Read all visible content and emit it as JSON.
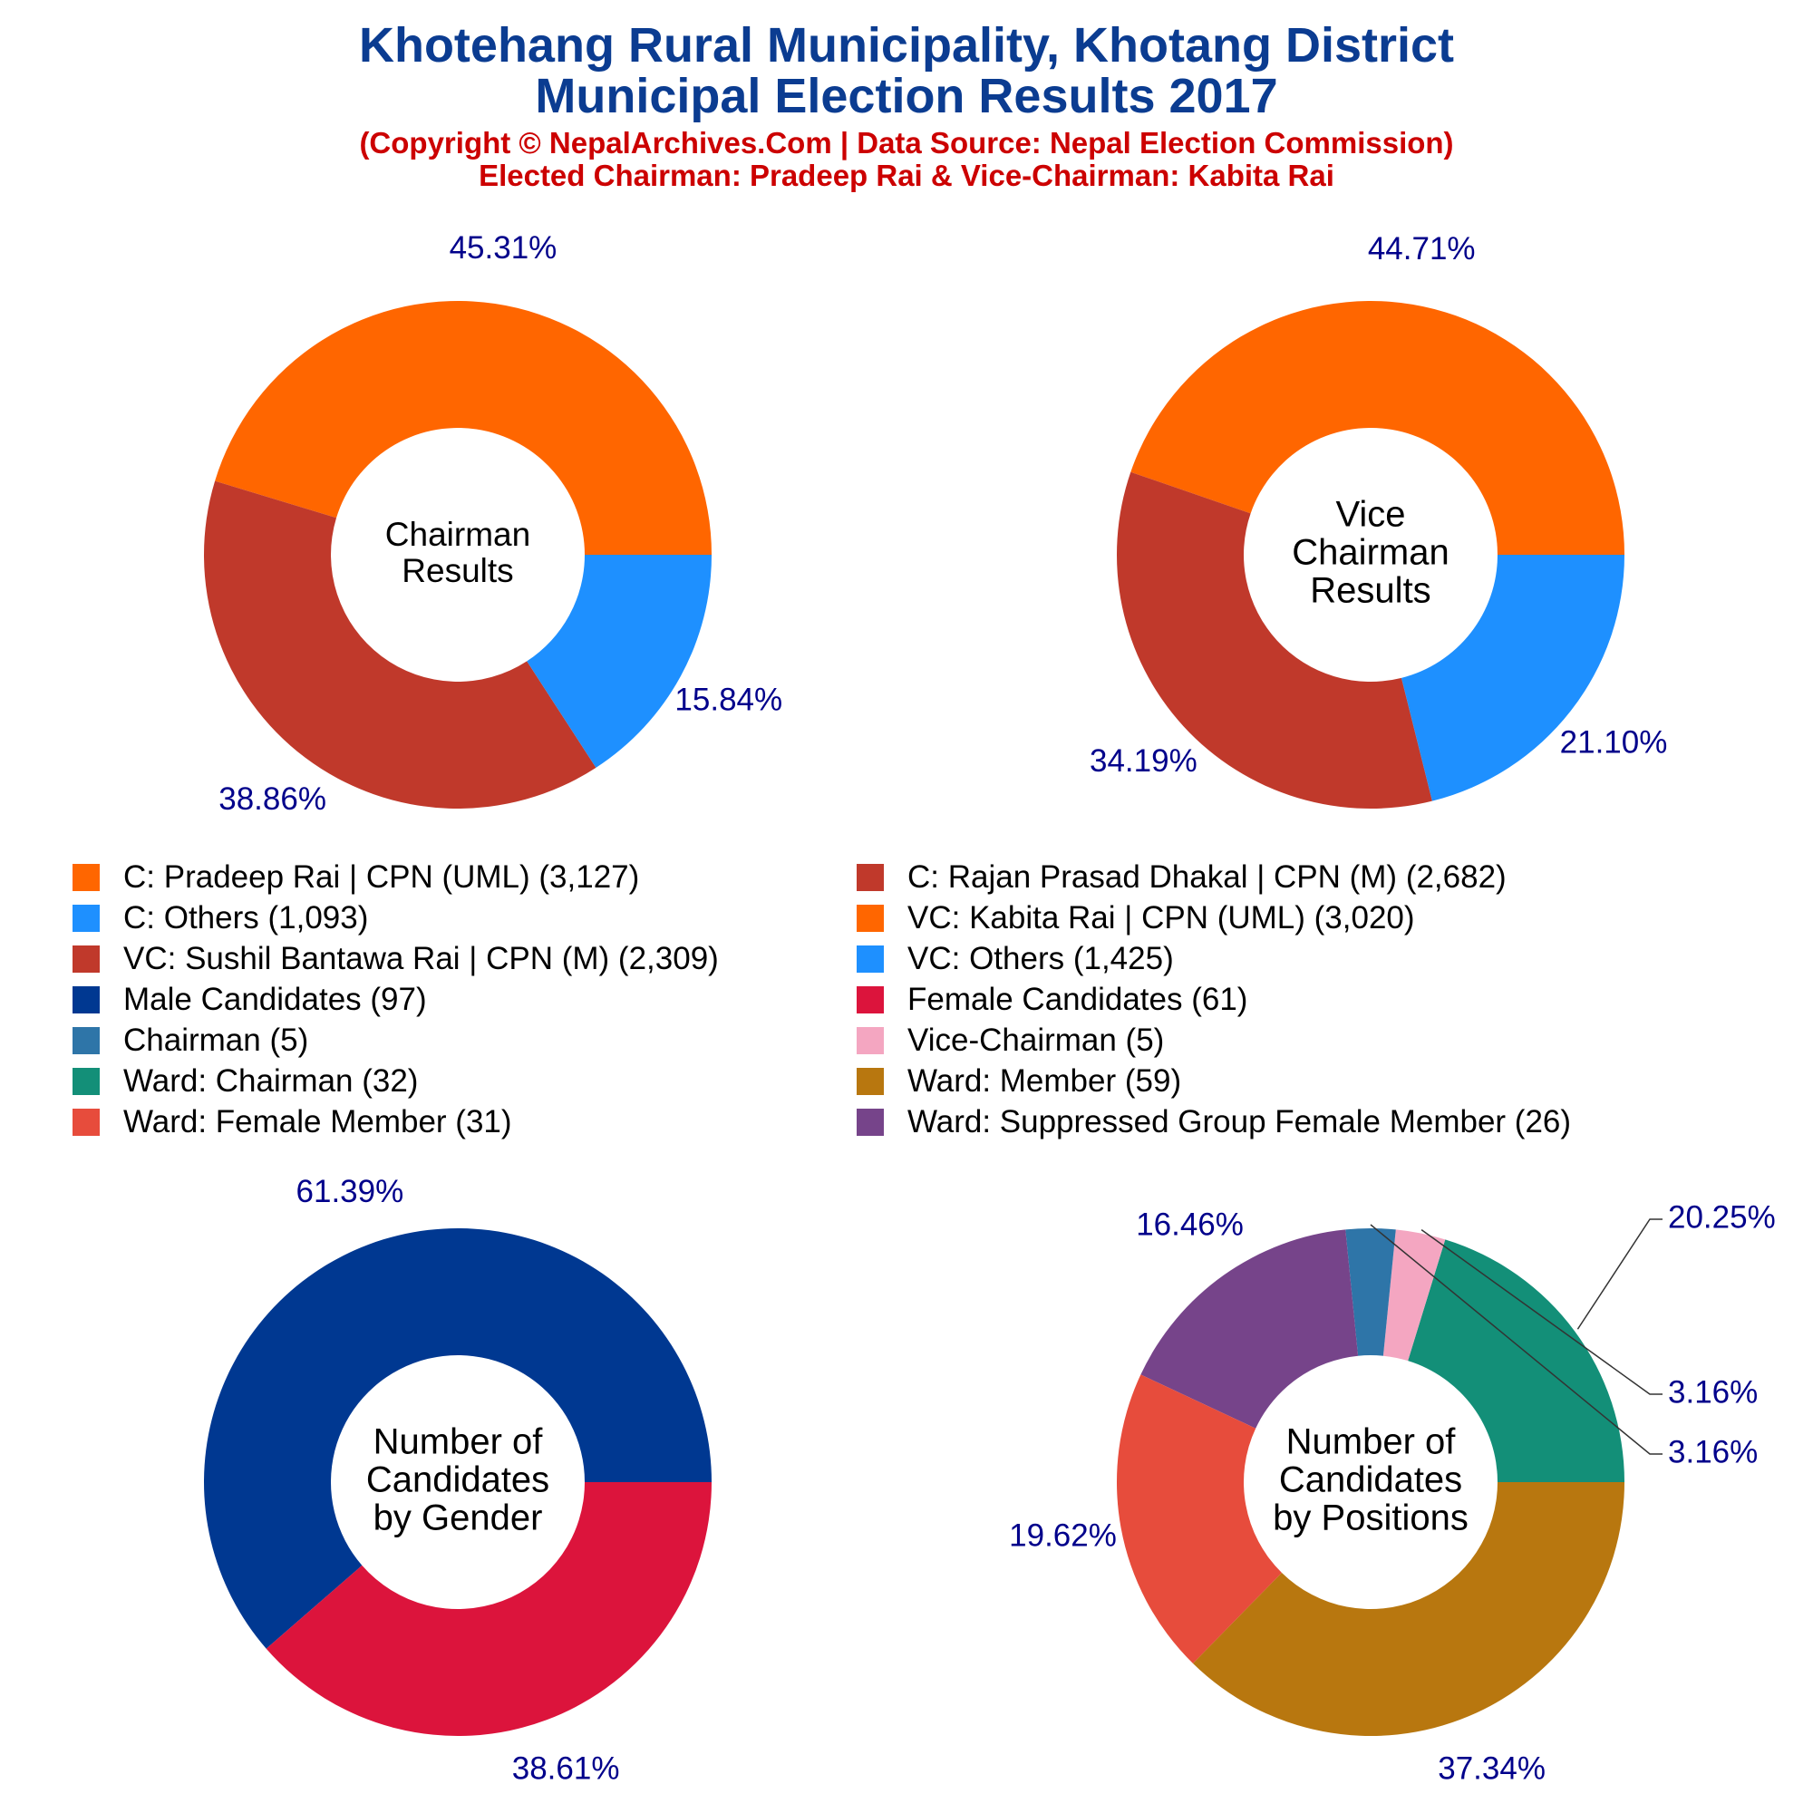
{
  "header": {
    "title_line1": "Khotehang Rural Municipality, Khotang District",
    "title_line2": "Municipal Election Results 2017",
    "subtitle_line1": "(Copyright © NepalArchives.Com | Data Source: Nepal Election Commission)",
    "subtitle_line2": "Elected Chairman: Pradeep Rai & Vice-Chairman: Kabita Rai"
  },
  "colors": {
    "title": "#0b3c91",
    "subtitle": "#cc0000",
    "pct_label": "#00008b"
  },
  "legend": [
    {
      "label": "C: Pradeep Rai | CPN (UML) (3,127)",
      "color": "#ff6600"
    },
    {
      "label": "C: Rajan Prasad Dhakal | CPN (M) (2,682)",
      "color": "#c0392b"
    },
    {
      "label": "C: Others (1,093)",
      "color": "#1e90ff"
    },
    {
      "label": "VC: Kabita Rai | CPN (UML) (3,020)",
      "color": "#ff6600"
    },
    {
      "label": "VC: Sushil Bantawa Rai | CPN (M) (2,309)",
      "color": "#c0392b"
    },
    {
      "label": "VC: Others (1,425)",
      "color": "#1e90ff"
    },
    {
      "label": "Male Candidates (97)",
      "color": "#003891"
    },
    {
      "label": "Female Candidates (61)",
      "color": "#dc143c"
    },
    {
      "label": "Chairman (5)",
      "color": "#2e75a8"
    },
    {
      "label": "Vice-Chairman (5)",
      "color": "#f4a6c1"
    },
    {
      "label": "Ward: Chairman (32)",
      "color": "#138f78"
    },
    {
      "label": "Ward: Member (59)",
      "color": "#b8770f"
    },
    {
      "label": "Ward: Female Member (31)",
      "color": "#e74c3c"
    },
    {
      "label": "Ward: Suppressed Group Female Member (26)",
      "color": "#76448a"
    }
  ],
  "chart_data": [
    {
      "type": "pie",
      "donut": true,
      "center_label": [
        "Chairman",
        "Results"
      ],
      "slices": [
        {
          "label": "C: Pradeep Rai | CPN (UML)",
          "value": 3127,
          "pct": "45.31%",
          "color": "#ff6600"
        },
        {
          "label": "C: Rajan Prasad Dhakal | CPN (M)",
          "value": 2682,
          "pct": "38.86%",
          "color": "#c0392b"
        },
        {
          "label": "C: Others",
          "value": 1093,
          "pct": "15.84%",
          "color": "#1e90ff"
        }
      ]
    },
    {
      "type": "pie",
      "donut": true,
      "center_label": [
        "Vice",
        "Chairman",
        "Results"
      ],
      "slices": [
        {
          "label": "VC: Kabita Rai | CPN (UML)",
          "value": 3020,
          "pct": "44.71%",
          "color": "#ff6600"
        },
        {
          "label": "VC: Sushil Bantawa Rai | CPN (M)",
          "value": 2309,
          "pct": "34.19%",
          "color": "#c0392b"
        },
        {
          "label": "VC: Others",
          "value": 1425,
          "pct": "21.10%",
          "color": "#1e90ff"
        }
      ]
    },
    {
      "type": "pie",
      "donut": true,
      "center_label": [
        "Number of",
        "Candidates",
        "by Gender"
      ],
      "slices": [
        {
          "label": "Male Candidates",
          "value": 97,
          "pct": "61.39%",
          "color": "#003891"
        },
        {
          "label": "Female Candidates",
          "value": 61,
          "pct": "38.61%",
          "color": "#dc143c"
        }
      ]
    },
    {
      "type": "pie",
      "donut": true,
      "center_label": [
        "Number of",
        "Candidates",
        "by Positions"
      ],
      "slices": [
        {
          "label": "Ward: Chairman",
          "value": 32,
          "pct": "20.25%",
          "color": "#138f78"
        },
        {
          "label": "Vice-Chairman",
          "value": 5,
          "pct": "3.16%",
          "color": "#f4a6c1"
        },
        {
          "label": "Chairman",
          "value": 5,
          "pct": "3.16%",
          "color": "#2e75a8"
        },
        {
          "label": "Ward: Suppressed Group Female Member",
          "value": 26,
          "pct": "16.46%",
          "color": "#76448a"
        },
        {
          "label": "Ward: Female Member",
          "value": 31,
          "pct": "19.62%",
          "color": "#e74c3c"
        },
        {
          "label": "Ward: Member",
          "value": 59,
          "pct": "37.34%",
          "color": "#b8770f"
        }
      ]
    }
  ]
}
